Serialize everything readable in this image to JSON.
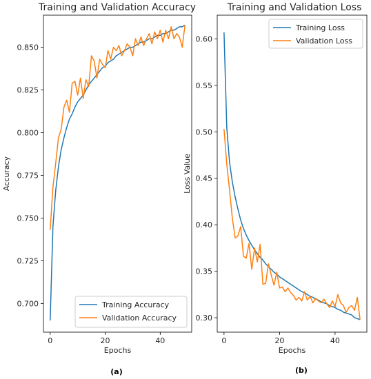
{
  "colors": {
    "training": "#1f77b4",
    "validation": "#ff7f0e"
  },
  "chart_data": [
    {
      "type": "line",
      "title": "Training and Validation Accuracy",
      "xlabel": "Epochs",
      "ylabel": "Accuracy",
      "caption": "(a)",
      "xlim": [
        -2.45,
        51.45
      ],
      "ylim": [
        0.6832,
        0.8688
      ],
      "xticks": [
        "0",
        "20",
        "40"
      ],
      "xtick_values": [
        0,
        20,
        40
      ],
      "yticks": [
        "0.700",
        "0.725",
        "0.750",
        "0.775",
        "0.800",
        "0.825",
        "0.850"
      ],
      "ytick_values": [
        0.7,
        0.725,
        0.75,
        0.775,
        0.8,
        0.825,
        0.85
      ],
      "legend_position": "lower right",
      "x": [
        0,
        1,
        2,
        3,
        4,
        5,
        6,
        7,
        8,
        9,
        10,
        11,
        12,
        13,
        14,
        15,
        16,
        17,
        18,
        19,
        20,
        21,
        22,
        23,
        24,
        25,
        26,
        27,
        28,
        29,
        30,
        31,
        32,
        33,
        34,
        35,
        36,
        37,
        38,
        39,
        40,
        41,
        42,
        43,
        44,
        45,
        46,
        47,
        48,
        49
      ],
      "series": [
        {
          "name": "Training Accuracy",
          "color_key": "training",
          "values": [
            0.69,
            0.745,
            0.766,
            0.78,
            0.79,
            0.797,
            0.803,
            0.808,
            0.811,
            0.815,
            0.818,
            0.82,
            0.822,
            0.825,
            0.828,
            0.83,
            0.832,
            0.834,
            0.836,
            0.838,
            0.839,
            0.841,
            0.842,
            0.843,
            0.845,
            0.846,
            0.847,
            0.848,
            0.849,
            0.85,
            0.85,
            0.851,
            0.852,
            0.853,
            0.853,
            0.854,
            0.855,
            0.855,
            0.856,
            0.857,
            0.857,
            0.858,
            0.858,
            0.859,
            0.86,
            0.86,
            0.861,
            0.862,
            0.862,
            0.863
          ]
        },
        {
          "name": "Validation Accuracy",
          "color_key": "validation",
          "values": [
            0.743,
            0.768,
            0.782,
            0.797,
            0.802,
            0.815,
            0.819,
            0.812,
            0.829,
            0.83,
            0.822,
            0.832,
            0.82,
            0.831,
            0.827,
            0.845,
            0.842,
            0.832,
            0.843,
            0.84,
            0.838,
            0.848,
            0.843,
            0.85,
            0.848,
            0.851,
            0.845,
            0.848,
            0.852,
            0.85,
            0.845,
            0.855,
            0.851,
            0.856,
            0.851,
            0.855,
            0.858,
            0.852,
            0.859,
            0.855,
            0.86,
            0.853,
            0.86,
            0.855,
            0.862,
            0.855,
            0.858,
            0.856,
            0.85,
            0.863
          ]
        }
      ]
    },
    {
      "type": "line",
      "title": "Training and Validation Loss",
      "xlabel": "Epochs",
      "ylabel": "Loss Value",
      "caption": "(b)",
      "xlim": [
        -2.45,
        51.45
      ],
      "ylim": [
        0.2845,
        0.6255
      ],
      "xticks": [
        "0",
        "20",
        "40"
      ],
      "xtick_values": [
        0,
        20,
        40
      ],
      "yticks": [
        "0.30",
        "0.35",
        "0.40",
        "0.45",
        "0.50",
        "0.55",
        "0.60"
      ],
      "ytick_values": [
        0.3,
        0.35,
        0.4,
        0.45,
        0.5,
        0.55,
        0.6
      ],
      "legend_position": "upper right",
      "x": [
        0,
        1,
        2,
        3,
        4,
        5,
        6,
        7,
        8,
        9,
        10,
        11,
        12,
        13,
        14,
        15,
        16,
        17,
        18,
        19,
        20,
        21,
        22,
        23,
        24,
        25,
        26,
        27,
        28,
        29,
        30,
        31,
        32,
        33,
        34,
        35,
        36,
        37,
        38,
        39,
        40,
        41,
        42,
        43,
        44,
        45,
        46,
        47,
        48,
        49
      ],
      "series": [
        {
          "name": "Training Loss",
          "color_key": "training",
          "values": [
            0.607,
            0.504,
            0.467,
            0.446,
            0.43,
            0.417,
            0.405,
            0.396,
            0.389,
            0.383,
            0.378,
            0.373,
            0.369,
            0.365,
            0.362,
            0.358,
            0.355,
            0.352,
            0.349,
            0.347,
            0.344,
            0.342,
            0.34,
            0.338,
            0.336,
            0.334,
            0.332,
            0.33,
            0.328,
            0.327,
            0.325,
            0.323,
            0.322,
            0.32,
            0.319,
            0.317,
            0.316,
            0.315,
            0.313,
            0.312,
            0.311,
            0.309,
            0.308,
            0.306,
            0.305,
            0.304,
            0.303,
            0.3,
            0.299,
            0.298
          ]
        },
        {
          "name": "Validation Loss",
          "color_key": "validation",
          "values": [
            0.503,
            0.465,
            0.437,
            0.407,
            0.386,
            0.388,
            0.398,
            0.366,
            0.364,
            0.38,
            0.352,
            0.375,
            0.36,
            0.379,
            0.336,
            0.337,
            0.358,
            0.346,
            0.335,
            0.349,
            0.332,
            0.333,
            0.328,
            0.332,
            0.327,
            0.324,
            0.319,
            0.322,
            0.318,
            0.328,
            0.319,
            0.323,
            0.316,
            0.321,
            0.318,
            0.316,
            0.32,
            0.315,
            0.311,
            0.318,
            0.312,
            0.325,
            0.316,
            0.313,
            0.306,
            0.311,
            0.313,
            0.308,
            0.322,
            0.298
          ]
        }
      ]
    }
  ]
}
